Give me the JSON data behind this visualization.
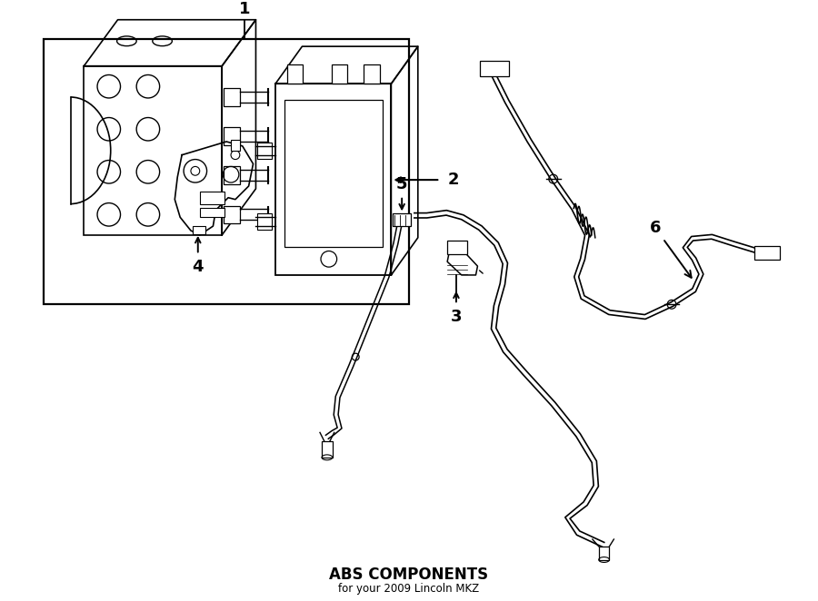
{
  "title": "ABS COMPONENTS",
  "subtitle": "for your 2009 Lincoln MKZ",
  "background_color": "#ffffff",
  "line_color": "#000000",
  "fig_width": 9.0,
  "fig_height": 6.62,
  "dpi": 100,
  "lw": 1.3
}
